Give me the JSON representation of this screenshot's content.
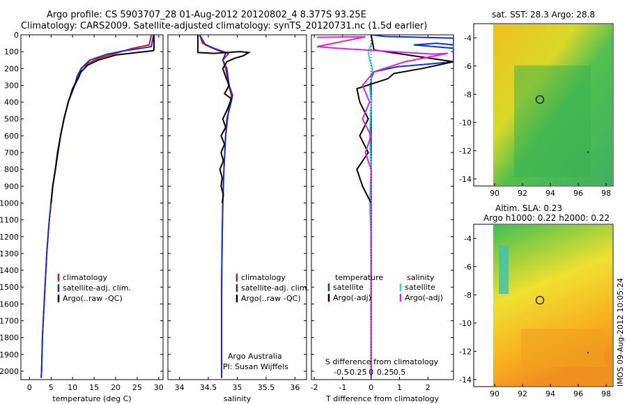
{
  "titles": {
    "line1": "Argo profile: CS 5903707_28 01-Aug-2012 20120802_4 8.377S 93.25E",
    "line2": "Climatology: CARS2009. Satellite-adjusted climatology: synTS_20120731.nc (1.5d earlier)",
    "sst": "sat. SST: 28.3 Argo: 28.8",
    "sla1": "Altim. SLA: 0.23",
    "sla2": "Argo h1000: 0.22 h2000: 0.22",
    "stamp": "IMOS 09-Aug-2012 10:05:24",
    "credit1": "Argo Australia",
    "credit2": "PI: Susan Wijffels"
  },
  "colors": {
    "climatology": "#e01010",
    "satellite": "#1030d0",
    "argo": "#000000",
    "sal_satellite": "#20d8e0",
    "sal_argo": "#e020e0"
  },
  "chart_data": [
    {
      "type": "line",
      "xlabel": "temperature (deg C)",
      "ylabel": "",
      "xlim": [
        -2,
        31
      ],
      "ylim": [
        2050,
        0
      ],
      "xticks": [
        "0",
        "5",
        "10",
        "15",
        "20",
        "25",
        "30"
      ],
      "yticks": [
        "0",
        "100",
        "200",
        "300",
        "400",
        "500",
        "600",
        "700",
        "800",
        "900",
        "1000",
        "1100",
        "1200",
        "1300",
        "1400",
        "1500",
        "1600",
        "1700",
        "1800",
        "1900",
        "2000"
      ],
      "legend": [
        "climatology",
        "satellite-adj. clim.",
        "Argo(..raw -QC)"
      ],
      "series": [
        {
          "name": "climatology",
          "color": "#e01010",
          "points": [
            [
              28.3,
              0
            ],
            [
              27.8,
              60
            ],
            [
              24,
              80
            ],
            [
              20,
              110
            ],
            [
              16,
              140
            ],
            [
              13.5,
              170
            ],
            [
              12,
              200
            ],
            [
              11.5,
              250
            ],
            [
              10.5,
              300
            ],
            [
              9,
              400
            ],
            [
              8,
              500
            ],
            [
              7.2,
              600
            ],
            [
              6.5,
              700
            ],
            [
              6,
              800
            ],
            [
              5.4,
              900
            ],
            [
              5,
              1000
            ],
            [
              4.6,
              1100
            ],
            [
              4.3,
              1200
            ],
            [
              4,
              1300
            ],
            [
              3.8,
              1400
            ],
            [
              3.6,
              1500
            ],
            [
              3.4,
              1600
            ],
            [
              3.2,
              1700
            ],
            [
              3,
              1800
            ],
            [
              2.9,
              1900
            ],
            [
              2.8,
              2000
            ],
            [
              2.7,
              2040
            ]
          ]
        },
        {
          "name": "satellite-adj. clim.",
          "color": "#1030d0",
          "points": [
            [
              28.8,
              0
            ],
            [
              28.3,
              70
            ],
            [
              26,
              80
            ],
            [
              22,
              95
            ],
            [
              18,
              115
            ],
            [
              14,
              150
            ],
            [
              12,
              200
            ],
            [
              11,
              250
            ],
            [
              10.5,
              300
            ],
            [
              9,
              400
            ],
            [
              8,
              500
            ],
            [
              7.2,
              600
            ],
            [
              6.5,
              700
            ],
            [
              6,
              800
            ],
            [
              5.4,
              900
            ],
            [
              5,
              1000
            ],
            [
              4.6,
              1100
            ],
            [
              4.3,
              1200
            ],
            [
              4,
              1300
            ],
            [
              3.8,
              1400
            ],
            [
              3.6,
              1500
            ],
            [
              3.4,
              1600
            ],
            [
              3.2,
              1700
            ],
            [
              3,
              1800
            ],
            [
              2.9,
              1900
            ],
            [
              2.8,
              2000
            ],
            [
              2.7,
              2040
            ]
          ]
        },
        {
          "name": "Argo(..raw -QC)",
          "color": "#000000",
          "points": [
            [
              28.9,
              0
            ],
            [
              28.9,
              90
            ],
            [
              28.6,
              95
            ],
            [
              25,
              105
            ],
            [
              20,
              120
            ],
            [
              16,
              150
            ],
            [
              13.5,
              180
            ],
            [
              12,
              220
            ],
            [
              11,
              270
            ],
            [
              10,
              320
            ],
            [
              9,
              400
            ],
            [
              8,
              500
            ],
            [
              7.2,
              600
            ],
            [
              6.6,
              700
            ],
            [
              6,
              800
            ],
            [
              5.4,
              900
            ],
            [
              5,
              1000
            ]
          ]
        }
      ]
    },
    {
      "type": "line",
      "xlabel": "salinity",
      "xlim": [
        33.8,
        36.2
      ],
      "ylim": [
        2050,
        0
      ],
      "xticks": [
        "34",
        "34.5",
        "35",
        "35.5",
        "36"
      ],
      "legend": [
        "climatology",
        "satellite-adj. clim.",
        "Argo(..raw -QC)"
      ],
      "series": [
        {
          "name": "climatology",
          "color": "#e01010",
          "points": [
            [
              34.35,
              0
            ],
            [
              34.4,
              50
            ],
            [
              34.6,
              80
            ],
            [
              34.85,
              110
            ],
            [
              34.75,
              150
            ],
            [
              34.8,
              200
            ],
            [
              34.85,
              300
            ],
            [
              34.9,
              360
            ],
            [
              34.85,
              450
            ],
            [
              34.8,
              600
            ],
            [
              34.77,
              800
            ],
            [
              34.75,
              1000
            ],
            [
              34.74,
              1200
            ],
            [
              34.73,
              1500
            ],
            [
              34.73,
              1800
            ],
            [
              34.73,
              2040
            ]
          ]
        },
        {
          "name": "satellite-adj. clim.",
          "color": "#1030d0",
          "points": [
            [
              34.35,
              0
            ],
            [
              34.45,
              60
            ],
            [
              34.65,
              90
            ],
            [
              34.8,
              110
            ],
            [
              34.75,
              150
            ],
            [
              34.82,
              200
            ],
            [
              34.86,
              300
            ],
            [
              34.92,
              360
            ],
            [
              34.88,
              420
            ],
            [
              34.82,
              500
            ],
            [
              34.8,
              600
            ],
            [
              34.77,
              800
            ],
            [
              34.75,
              1000
            ],
            [
              34.74,
              1200
            ],
            [
              34.73,
              1500
            ],
            [
              34.73,
              1800
            ],
            [
              34.73,
              2040
            ]
          ]
        },
        {
          "name": "Argo(..raw -QC)",
          "color": "#000000",
          "points": [
            [
              34.32,
              0
            ],
            [
              34.32,
              105
            ],
            [
              34.6,
              110
            ],
            [
              35.05,
              100
            ],
            [
              35.2,
              105
            ],
            [
              35.1,
              125
            ],
            [
              34.95,
              140
            ],
            [
              34.82,
              160
            ],
            [
              34.75,
              200
            ],
            [
              34.8,
              250
            ],
            [
              34.86,
              300
            ],
            [
              34.78,
              350
            ],
            [
              34.9,
              380
            ],
            [
              34.82,
              450
            ],
            [
              34.75,
              500
            ],
            [
              34.8,
              550
            ],
            [
              34.72,
              600
            ],
            [
              34.78,
              650
            ],
            [
              34.72,
              700
            ],
            [
              34.76,
              750
            ],
            [
              34.7,
              800
            ],
            [
              34.74,
              850
            ],
            [
              34.72,
              900
            ],
            [
              34.76,
              950
            ],
            [
              34.74,
              1000
            ]
          ]
        }
      ]
    },
    {
      "type": "line",
      "xlabel": "T difference from climatology",
      "xlabel_top": "S difference from climatology",
      "xlim": [
        -2.1,
        2.9
      ],
      "ylim": [
        2050,
        0
      ],
      "xticks": [
        "-2",
        "-1",
        "0",
        "1",
        "2"
      ],
      "xticks_top": [
        "-0.5",
        "-0.25",
        "0",
        "0.25",
        "0.5"
      ],
      "legend_headers": [
        "temperature",
        "salinity"
      ],
      "legend": [
        "satellite",
        "Argo(-adj)",
        "satellite",
        "Argo(-adj)"
      ],
      "series": [
        {
          "name": "satellite",
          "color": "#1030d0",
          "points": [
            [
              0,
              0
            ],
            [
              0.5,
              10
            ],
            [
              1.8,
              15
            ],
            [
              2.9,
              20
            ],
            [
              2.9,
              60
            ],
            [
              2.3,
              50
            ],
            [
              1.5,
              60
            ],
            [
              2.9,
              80
            ],
            [
              2.9,
              160
            ],
            [
              1.6,
              180
            ],
            [
              0.9,
              190
            ],
            [
              0.1,
              220
            ],
            [
              0,
              260
            ],
            [
              0,
              2040
            ]
          ]
        },
        {
          "name": "satellite",
          "color": "#20d8e0",
          "points": [
            [
              0,
              0
            ],
            [
              0.05,
              40
            ],
            [
              -0.1,
              100
            ],
            [
              -0.05,
              150
            ],
            [
              0.05,
              200
            ],
            [
              0,
              260
            ],
            [
              -0.05,
              300
            ],
            [
              0,
              400
            ],
            [
              -0.05,
              600
            ],
            [
              0,
              800
            ],
            [
              -0.05,
              1000
            ],
            [
              0,
              1200
            ],
            [
              0,
              2040
            ]
          ]
        },
        {
          "name": "Argo(-adj)",
          "color": "#000000",
          "points": [
            [
              0,
              0
            ],
            [
              0.1,
              90
            ],
            [
              2.9,
              160
            ],
            [
              1.8,
              200
            ],
            [
              0.8,
              230
            ],
            [
              0.6,
              260
            ],
            [
              -0.5,
              320
            ],
            [
              -0.4,
              400
            ],
            [
              -0.1,
              500
            ],
            [
              -0.4,
              600
            ],
            [
              -0.1,
              700
            ],
            [
              -0.5,
              800
            ],
            [
              -0.3,
              900
            ],
            [
              0,
              1000
            ]
          ]
        },
        {
          "name": "Argo(-adj)",
          "color": "#e020e0",
          "points": [
            [
              -1.9,
              15
            ],
            [
              -0.2,
              12
            ],
            [
              -1.9,
              70
            ],
            [
              -1.2,
              80
            ],
            [
              2.2,
              115
            ],
            [
              2.7,
              110
            ],
            [
              1.2,
              160
            ],
            [
              0.1,
              220
            ],
            [
              -0.3,
              300
            ],
            [
              -0.05,
              400
            ],
            [
              -0.3,
              500
            ],
            [
              0,
              600
            ],
            [
              -0.2,
              700
            ],
            [
              0,
              800
            ],
            [
              0,
              1000
            ],
            [
              0,
              1200
            ],
            [
              0,
              2040
            ]
          ]
        }
      ]
    },
    {
      "type": "heatmap",
      "title": "sat. SST: 28.3 Argo: 28.8",
      "xlim": [
        88.5,
        98.5
      ],
      "ylim": [
        -14.5,
        -3
      ],
      "xticks": [
        "90",
        "92",
        "94",
        "96",
        "98"
      ],
      "yticks": [
        "-4",
        "-6",
        "-8",
        "-10",
        "-12",
        "-14"
      ],
      "marker": {
        "lon": 93.25,
        "lat": -8.377
      }
    },
    {
      "type": "heatmap",
      "title": "Altim. SLA: 0.23",
      "xlim": [
        88.5,
        98.5
      ],
      "ylim": [
        -14.5,
        -3
      ],
      "xticks": [
        "90",
        "92",
        "94",
        "96",
        "98"
      ],
      "yticks": [
        "-4",
        "-6",
        "-8",
        "-10",
        "-12",
        "-14"
      ],
      "marker": {
        "lon": 93.25,
        "lat": -8.377
      }
    }
  ]
}
